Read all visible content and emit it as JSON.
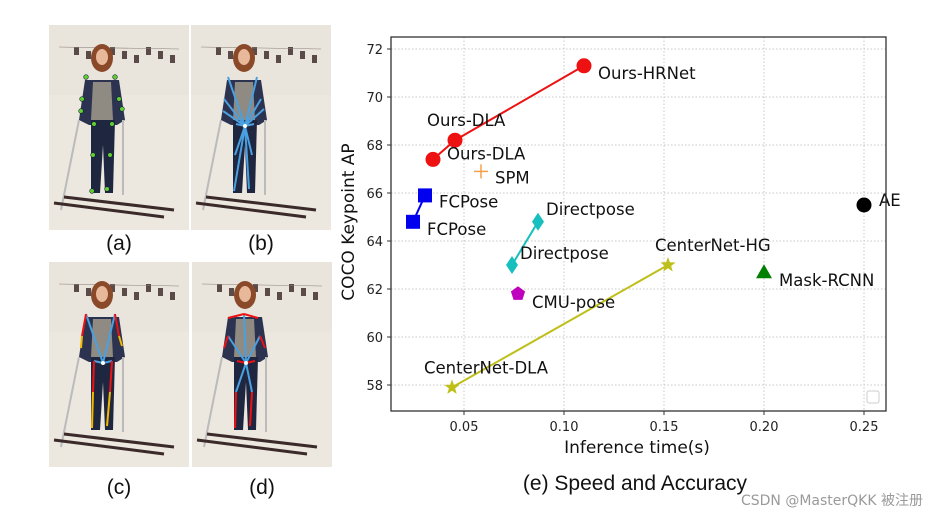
{
  "panels": [
    {
      "label": "(a)",
      "style": "keypoints"
    },
    {
      "label": "(b)",
      "style": "center-offsets"
    },
    {
      "label": "(c)",
      "style": "hierarchical-offsets"
    },
    {
      "label": "(d)",
      "style": "tree-offsets"
    }
  ],
  "caption": "(e) Speed and Accuracy",
  "watermark": "CSDN @MasterQKK 被注册",
  "chart_data": {
    "type": "scatter",
    "title": "",
    "xlabel": "Inference time(s)",
    "ylabel": "COCO Keypoint AP",
    "xlim": [
      0.0135,
      0.261
    ],
    "ylim": [
      56.9,
      72.5
    ],
    "xticks": [
      "0.05",
      "0.10",
      "0.15",
      "0.20",
      "0.25"
    ],
    "xtick_values": [
      0.05,
      0.1,
      0.15,
      0.2,
      0.25
    ],
    "yticks": [
      "58",
      "60",
      "62",
      "64",
      "66",
      "68",
      "70",
      "72"
    ],
    "ytick_values": [
      58,
      60,
      62,
      64,
      66,
      68,
      70,
      72
    ],
    "grid": true,
    "legend": "bottom-right (empty)",
    "series": [
      {
        "marker": "circle",
        "color": "#ee1111",
        "connected": true,
        "points": [
          {
            "x": 0.0345,
            "y": 67.4,
            "label": "Ours-DLA"
          },
          {
            "x": 0.0455,
            "y": 68.2,
            "label": "Ours-DLA"
          },
          {
            "x": 0.11,
            "y": 71.3,
            "label": "Ours-HRNet"
          }
        ]
      },
      {
        "marker": "plus",
        "color": "#f4a04a",
        "connected": false,
        "points": [
          {
            "x": 0.0585,
            "y": 66.9,
            "label": "SPM"
          }
        ]
      },
      {
        "marker": "square",
        "color": "#0000ee",
        "connected": true,
        "points": [
          {
            "x": 0.0245,
            "y": 64.8,
            "label": "FCPose"
          },
          {
            "x": 0.0305,
            "y": 65.9,
            "label": "FCPose"
          }
        ]
      },
      {
        "marker": "diamond",
        "color": "#17bfbf",
        "connected": true,
        "points": [
          {
            "x": 0.074,
            "y": 63.0,
            "label": "Directpose"
          },
          {
            "x": 0.087,
            "y": 64.8,
            "label": "Directpose"
          }
        ]
      },
      {
        "marker": "pentagon",
        "color": "#bf00bf",
        "connected": false,
        "points": [
          {
            "x": 0.077,
            "y": 61.8,
            "label": "CMU-pose"
          }
        ]
      },
      {
        "marker": "star",
        "color": "#bfbf1a",
        "connected": true,
        "points": [
          {
            "x": 0.044,
            "y": 57.9,
            "label": "CenterNet-DLA"
          },
          {
            "x": 0.152,
            "y": 63.0,
            "label": "CenterNet-HG"
          }
        ]
      },
      {
        "marker": "triangle",
        "color": "#008000",
        "connected": false,
        "points": [
          {
            "x": 0.2,
            "y": 62.7,
            "label": "Mask-RCNN"
          }
        ]
      },
      {
        "marker": "circle",
        "color": "#000000",
        "connected": false,
        "points": [
          {
            "x": 0.25,
            "y": 65.5,
            "label": "AE"
          }
        ]
      }
    ]
  }
}
